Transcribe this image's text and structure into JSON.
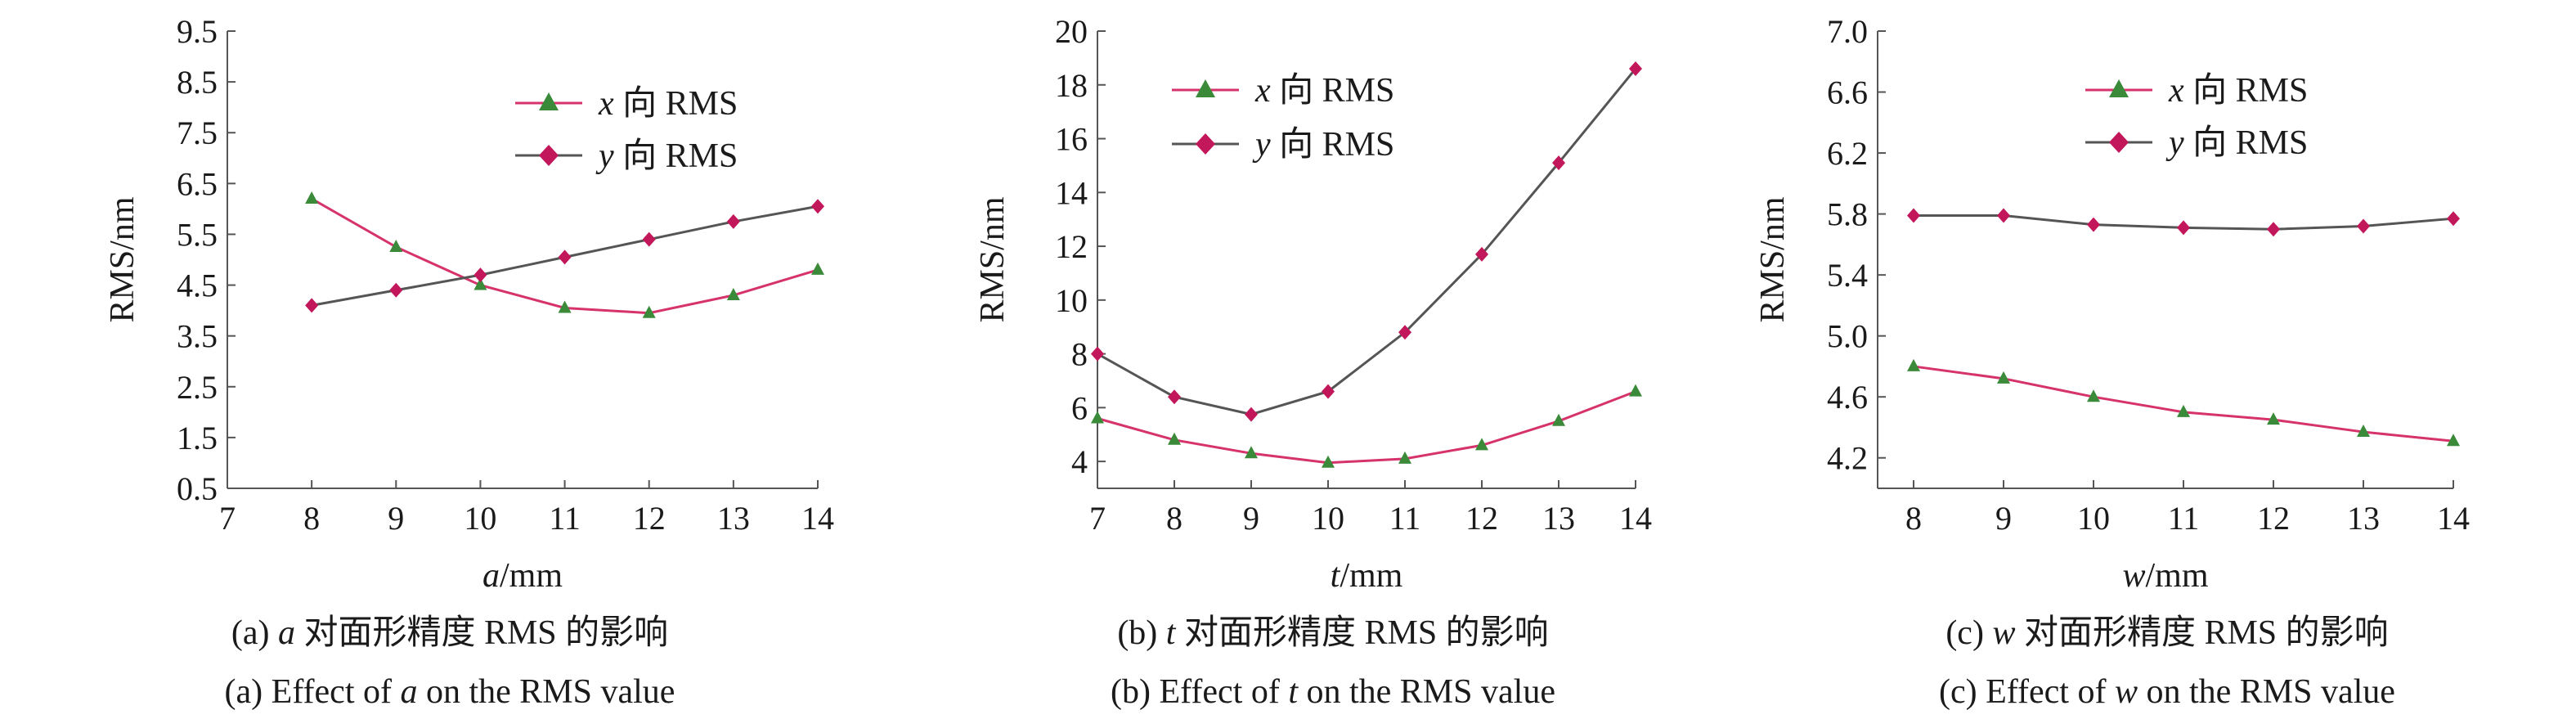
{
  "colors": {
    "x_series": "#d6336c",
    "x_marker": "#3a8a3a",
    "y_series": "#555555",
    "y_marker": "#c2185b"
  },
  "chart_data": [
    {
      "type": "line",
      "xlabel": {
        "var": "a",
        "unit": "/mm"
      },
      "ylabel": "RMS/nm",
      "xlim": [
        7,
        14
      ],
      "ylim": [
        0.5,
        9.5
      ],
      "xticks": [
        "7",
        "8",
        "9",
        "10",
        "11",
        "12",
        "13",
        "14"
      ],
      "yticks": [
        "0.5",
        "1.5",
        "2.5",
        "3.5",
        "4.5",
        "5.5",
        "6.5",
        "7.5",
        "8.5",
        "9.5"
      ],
      "x": [
        8,
        9,
        10,
        11,
        12,
        13,
        14
      ],
      "series": [
        {
          "name_var": "x",
          "name_text": " 向 RMS",
          "marker": "triangle",
          "values": [
            6.2,
            5.25,
            4.5,
            4.05,
            3.95,
            4.3,
            4.8
          ]
        },
        {
          "name_var": "y",
          "name_text": " 向 RMS",
          "marker": "diamond",
          "values": [
            4.1,
            4.4,
            4.7,
            5.05,
            5.4,
            5.75,
            6.05
          ]
        }
      ],
      "legend_position": "top-right",
      "caption_cn": {
        "prefix": "(a) ",
        "var": "a",
        "text": " 对面形精度 RMS 的影响"
      },
      "caption_en": {
        "prefix": "(a) Effect of ",
        "var": "a",
        "text": " on the RMS value"
      }
    },
    {
      "type": "line",
      "xlabel": {
        "var": "t",
        "unit": "/mm"
      },
      "ylabel": "RMS/nm",
      "xlim": [
        7,
        14
      ],
      "ylim": [
        3,
        20
      ],
      "xticks": [
        "7",
        "8",
        "9",
        "10",
        "11",
        "12",
        "13",
        "14"
      ],
      "yticks": [
        "4",
        "6",
        "8",
        "10",
        "12",
        "14",
        "16",
        "18",
        "20"
      ],
      "x": [
        7,
        8,
        9,
        10,
        11,
        12,
        13,
        14
      ],
      "series": [
        {
          "name_var": "x",
          "name_text": " 向 RMS",
          "marker": "triangle",
          "values": [
            5.6,
            4.8,
            4.3,
            3.95,
            4.1,
            4.6,
            5.5,
            6.6
          ]
        },
        {
          "name_var": "y",
          "name_text": " 向 RMS",
          "marker": "diamond",
          "values": [
            8.0,
            6.4,
            5.75,
            6.6,
            8.8,
            11.7,
            15.1,
            18.6
          ]
        }
      ],
      "legend_position": "top-center",
      "caption_cn": {
        "prefix": "(b) ",
        "var": "t",
        "text": " 对面形精度 RMS 的影响"
      },
      "caption_en": {
        "prefix": "(b) Effect of ",
        "var": "t",
        "text": " on the RMS value"
      }
    },
    {
      "type": "line",
      "xlabel": {
        "var": "w",
        "unit": "/mm"
      },
      "ylabel": "RMS/nm",
      "xlim": [
        7.6,
        14
      ],
      "ylim": [
        4.0,
        7.0
      ],
      "xticks": [
        "8",
        "9",
        "10",
        "11",
        "12",
        "13",
        "14"
      ],
      "yticks": [
        "4.2",
        "4.6",
        "5.0",
        "5.4",
        "5.8",
        "6.2",
        "6.6",
        "7.0"
      ],
      "x": [
        8,
        9,
        10,
        11,
        12,
        13,
        14
      ],
      "series": [
        {
          "name_var": "x",
          "name_text": " 向 RMS",
          "marker": "triangle",
          "values": [
            4.8,
            4.72,
            4.6,
            4.5,
            4.45,
            4.37,
            4.31
          ]
        },
        {
          "name_var": "y",
          "name_text": " 向 RMS",
          "marker": "diamond",
          "values": [
            5.79,
            5.79,
            5.73,
            5.71,
            5.7,
            5.72,
            5.77
          ]
        }
      ],
      "legend_position": "top-right",
      "caption_cn": {
        "prefix": "(c) ",
        "var": "w",
        "text": " 对面形精度 RMS 的影响"
      },
      "caption_en": {
        "prefix": "(c) Effect of ",
        "var": "w",
        "text": " on the RMS value"
      }
    }
  ]
}
